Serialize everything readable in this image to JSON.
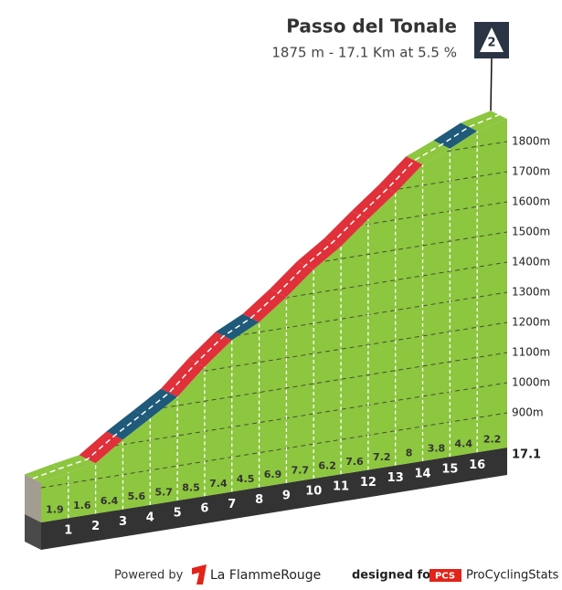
{
  "chart_data": {
    "type": "climb-profile",
    "title": "Passo del Tonale",
    "subtitle": "1875 m - 17.1 Km at 5.5 %",
    "category": "2",
    "x": [
      0,
      1,
      2,
      3,
      4,
      5,
      6,
      7,
      8,
      9,
      10,
      11,
      12,
      13,
      14,
      15,
      16,
      17.1
    ],
    "xlim": [
      0,
      17.1
    ],
    "elevations": [
      917,
      936,
      952,
      1016,
      1072,
      1129,
      1214,
      1288,
      1333,
      1402,
      1479,
      1541,
      1617,
      1689,
      1769,
      1807,
      1851,
      1875
    ],
    "gradients": [
      1.9,
      1.6,
      6.4,
      5.6,
      5.7,
      8.5,
      7.4,
      4.5,
      6.9,
      7.7,
      6.2,
      7.6,
      7.2,
      8.0,
      3.8,
      4.4,
      2.2
    ],
    "segment_colors": [
      "#8dc63f",
      "#8dc63f",
      "#e0303a",
      "#1f5a7a",
      "#1f5a7a",
      "#e0303a",
      "#e0303a",
      "#1f5a7a",
      "#e0303a",
      "#e0303a",
      "#e0303a",
      "#e0303a",
      "#e0303a",
      "#e0303a",
      "#8dc63f",
      "#1f5a7a",
      "#8dc63f"
    ],
    "face_color": "#8dc63f",
    "ylim": [
      785,
      1900
    ],
    "yticks": [
      {
        "value": 900,
        "label": "900m"
      },
      {
        "value": 1000,
        "label": "1000m"
      },
      {
        "value": 1100,
        "label": "1100m"
      },
      {
        "value": 1200,
        "label": "1200m"
      },
      {
        "value": 1300,
        "label": "1300m"
      },
      {
        "value": 1400,
        "label": "1400m"
      },
      {
        "value": 1500,
        "label": "1500m"
      },
      {
        "value": 1600,
        "label": "1600m"
      },
      {
        "value": 1700,
        "label": "1700m"
      },
      {
        "value": 1800,
        "label": "1800m"
      }
    ],
    "grid": true
  },
  "footer": {
    "powered_by": "Powered by",
    "brand": "La FlammeRouge",
    "designed_for": "designed for",
    "pcs": "PCS",
    "site": "ProCyclingStats"
  }
}
